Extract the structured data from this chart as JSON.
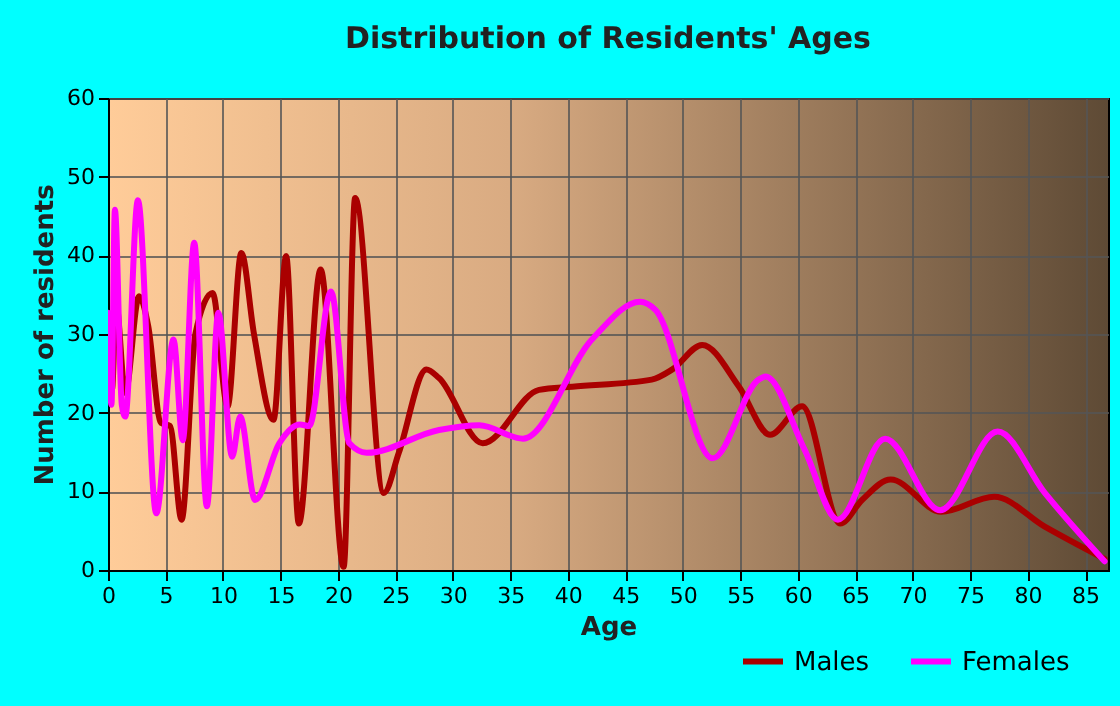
{
  "chart_data": {
    "type": "line",
    "title": "Distribution of Residents' Ages",
    "xlabel": "Age",
    "ylabel": "Number of residents",
    "xlim": [
      0,
      87
    ],
    "ylim": [
      0,
      60
    ],
    "xticks": [
      0,
      5,
      10,
      15,
      20,
      25,
      30,
      35,
      40,
      45,
      50,
      55,
      60,
      65,
      70,
      75,
      80,
      85
    ],
    "yticks": [
      0,
      10,
      20,
      30,
      40,
      50,
      60
    ],
    "grid": true,
    "legend": "bottom right",
    "line_style": "solid",
    "marker": "none",
    "series": [
      {
        "name": "Males",
        "color": "#aa0000",
        "x": [
          0,
          0.35,
          0.7,
          1.5,
          2.7,
          3.5,
          4.6,
          5.4,
          6.4,
          7.6,
          9.1,
          10.4,
          11.6,
          12.7,
          14.4,
          15.5,
          16.6,
          18.5,
          20.5,
          21.5,
          24,
          25.3,
          27.7,
          28.8,
          32.6,
          37.5,
          40.4,
          47.3,
          49.1,
          51.7,
          54.9,
          57.6,
          60.4,
          63.7,
          65.6,
          68.1,
          72.5,
          77.1,
          81.5,
          86.7
        ],
        "values": [
          30,
          23,
          34,
          22.5,
          34.8,
          31,
          18.7,
          18.3,
          6.4,
          30,
          35.2,
          20.8,
          40.3,
          30,
          19.1,
          39.9,
          5.9,
          38.2,
          0.4,
          47.3,
          9.8,
          14.9,
          25.5,
          24.4,
          16.1,
          22.9,
          23.3,
          24.2,
          25.5,
          28.6,
          23.3,
          17.2,
          20.8,
          5.9,
          8.9,
          11.5,
          7.4,
          9.3,
          5.5,
          1.4
        ]
      },
      {
        "name": "Females",
        "color": "#ff00ff",
        "x": [
          0,
          0.3,
          0.6,
          1.2,
          1.5,
          2.6,
          4.2,
          5.7,
          6.5,
          7.5,
          8.6,
          9.6,
          10.8,
          11.5,
          12.8,
          14.9,
          16.7,
          17.5,
          19.4,
          21,
          22.5,
          28.8,
          32.3,
          36.1,
          42.1,
          46.3,
          47.6,
          52.6,
          56.6,
          57.2,
          60.6,
          63.5,
          67.6,
          72.4,
          77.4,
          81.5,
          86.7
        ],
        "values": [
          32.7,
          21,
          45.8,
          21,
          19.5,
          47,
          7.2,
          29.3,
          16.5,
          41.6,
          8.1,
          32.7,
          14.4,
          19.5,
          8.9,
          16.1,
          18.5,
          18.3,
          35.4,
          16.1,
          14.9,
          17.8,
          18.4,
          16.7,
          29.3,
          34.1,
          33.1,
          14.2,
          24.2,
          24.6,
          15.3,
          6.4,
          16.7,
          7.6,
          17.6,
          9.8,
          1.1
        ]
      }
    ]
  }
}
